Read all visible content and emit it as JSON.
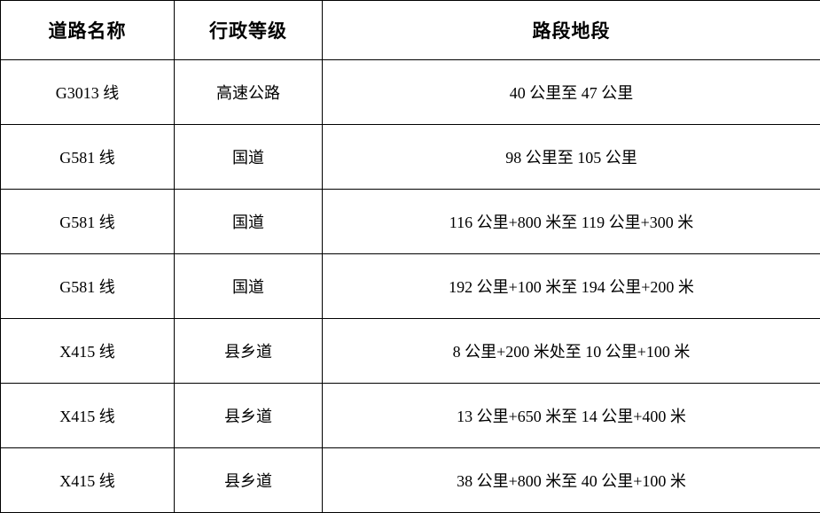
{
  "table": {
    "headers": [
      "道路名称",
      "行政等级",
      "路段地段"
    ],
    "rows": [
      [
        "G3013 线",
        "高速公路",
        "40 公里至 47 公里"
      ],
      [
        "G581 线",
        "国道",
        "98 公里至 105 公里"
      ],
      [
        "G581 线",
        "国道",
        "116 公里+800 米至 119 公里+300 米"
      ],
      [
        "G581 线",
        "国道",
        "192 公里+100 米至 194 公里+200 米"
      ],
      [
        "X415 线",
        "县乡道",
        "8 公里+200 米处至 10 公里+100 米"
      ],
      [
        "X415 线",
        "县乡道",
        "13 公里+650 米至 14 公里+400 米"
      ],
      [
        "X415 线",
        "县乡道",
        "38 公里+800 米至 40 公里+100 米"
      ]
    ],
    "colors": {
      "border": "#000000",
      "background": "#ffffff",
      "text": "#000000"
    }
  }
}
